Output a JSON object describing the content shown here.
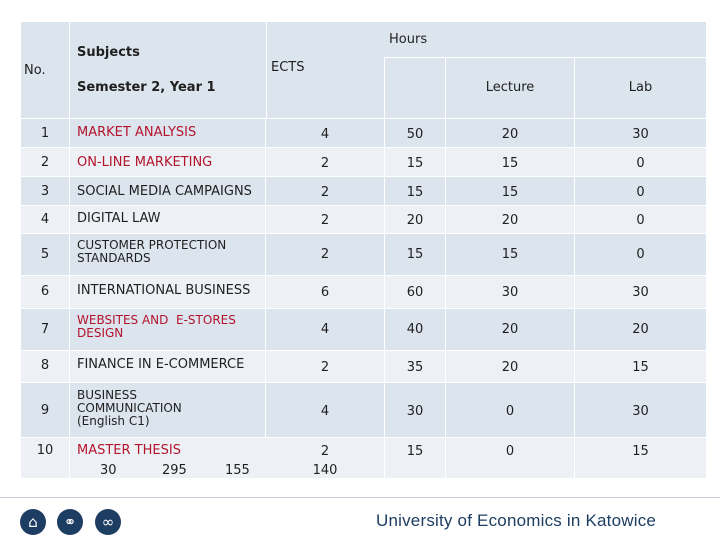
{
  "header": {
    "no": "No.",
    "subjects": "Subjects",
    "semester": "Semester 2, Year 1",
    "ects": "ECTS",
    "hours": "Hours",
    "lecture": "Lecture",
    "lab": "Lab"
  },
  "rows": [
    {
      "no": "1",
      "subject": "MARKET ANALYSIS",
      "ects": "4",
      "hours": "50",
      "lecture": "20",
      "lab": "30"
    },
    {
      "no": "2",
      "subject": "ON-LINE MARKETING",
      "ects": "2",
      "hours": "15",
      "lecture": "15",
      "lab": "0"
    },
    {
      "no": "3",
      "subject": "SOCIAL MEDIA CAMPAIGNS",
      "ects": "2",
      "hours": "15",
      "lecture": "15",
      "lab": "0"
    },
    {
      "no": "4",
      "subject": "DIGITAL LAW",
      "ects": "2",
      "hours": "20",
      "lecture": "20",
      "lab": "0"
    },
    {
      "no": "5",
      "subject_line1": "CUSTOMER PROTECTION",
      "subject_line2": "STANDARDS",
      "ects": "2",
      "hours": "15",
      "lecture": "15",
      "lab": "0"
    },
    {
      "no": "6",
      "subject": "INTERNATIONAL BUSINESS",
      "ects": "6",
      "hours": "60",
      "lecture": "30",
      "lab": "30"
    },
    {
      "no": "7",
      "subject_line1": "WEBSITES AND  E-STORES",
      "subject_line2": "DESIGN",
      "ects": "4",
      "hours": "40",
      "lecture": "20",
      "lab": "20"
    },
    {
      "no": "8",
      "subject": "FINANCE IN E-COMMERCE",
      "ects": "2",
      "hours": "35",
      "lecture": "20",
      "lab": "15"
    },
    {
      "no": "9",
      "subject_line1": "BUSINESS",
      "subject_line2": "COMMUNICATION",
      "subject_line3": "(English C1)",
      "ects": "4",
      "hours": "30",
      "lecture": "0",
      "lab": "30"
    },
    {
      "no": "10",
      "subject": "MASTER THESIS",
      "ects": "2",
      "hours": "15",
      "lecture": "0",
      "lab": "15"
    }
  ],
  "totals": {
    "a": "30",
    "b": "295",
    "c": "155",
    "d": "140"
  },
  "footer": {
    "university": "University of Economics in Katowice",
    "icons": [
      "home-icon",
      "globe-icon",
      "infinity-icon"
    ]
  }
}
